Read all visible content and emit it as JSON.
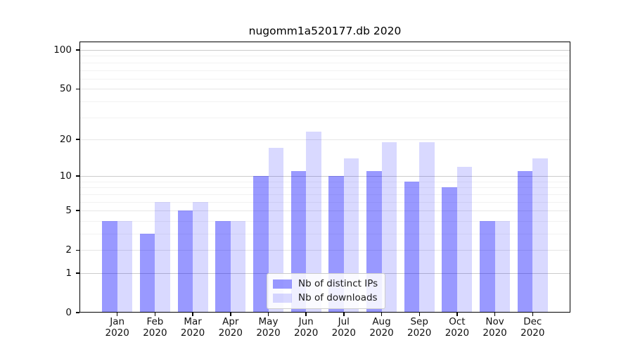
{
  "title": "nugomm1a520177.db 2020",
  "colors": {
    "ips_bar": "#0000ff66",
    "downloads_bar": "#0000ff26",
    "ips_bar_flat": "#9999ff",
    "downloads_bar_flat": "#d9d9ff",
    "grid_decade": "#cccccc",
    "grid_labeled": "#e6e6e6",
    "grid_minor": "#f2f2f2",
    "axis": "#000000",
    "text": "#111111",
    "legend_border": "#cccccc"
  },
  "legend": {
    "items": [
      {
        "label": "Nb of distinct IPs",
        "color_key": "ips_bar"
      },
      {
        "label": "Nb of downloads",
        "color_key": "downloads_bar"
      }
    ]
  },
  "chart_data": {
    "type": "bar",
    "title": "nugomm1a520177.db 2020",
    "x_categories": [
      "Jan",
      "Feb",
      "Mar",
      "Apr",
      "May",
      "Jun",
      "Jul",
      "Aug",
      "Sep",
      "Oct",
      "Nov",
      "Dec"
    ],
    "x_category_year": "2020",
    "series": [
      {
        "name": "Nb of distinct IPs",
        "values": [
          4,
          3,
          5,
          4,
          10,
          11,
          10,
          11,
          9,
          8,
          4,
          11
        ]
      },
      {
        "name": "Nb of downloads",
        "values": [
          4,
          6,
          6,
          4,
          17,
          23,
          14,
          19,
          19,
          12,
          4,
          14
        ]
      }
    ],
    "y_scale": "log10(1+y)",
    "y_ticks": [
      0,
      1,
      2,
      5,
      10,
      20,
      50,
      100
    ],
    "y_minor_gridlines": [
      3,
      4,
      6,
      7,
      8,
      9,
      30,
      40,
      60,
      70,
      80,
      90
    ],
    "ylim": [
      0,
      116
    ],
    "grid": "horizontal",
    "legend_position": "lower center"
  }
}
